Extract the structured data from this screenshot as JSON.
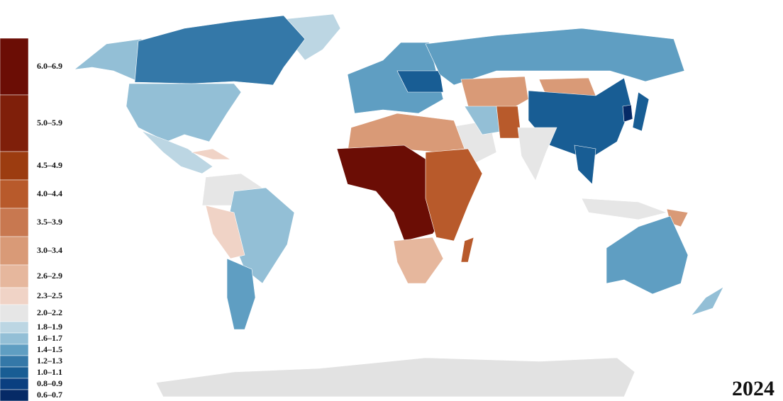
{
  "year": "2024",
  "legend": {
    "items": [
      {
        "label": "6.0–6.9",
        "color": "#6b0d05"
      },
      {
        "label": "5.0–5.9",
        "color": "#7f1f0a"
      },
      {
        "label": "4.5–4.9",
        "color": "#9c3c10"
      },
      {
        "label": "4.0–4.4",
        "color": "#b85a2b"
      },
      {
        "label": "3.5–3.9",
        "color": "#c87850"
      },
      {
        "label": "3.0–3.4",
        "color": "#d99a77"
      },
      {
        "label": "2.6–2.9",
        "color": "#e6b79d"
      },
      {
        "label": "2.3–2.5",
        "color": "#f0d3c6"
      },
      {
        "label": "2.0–2.2",
        "color": "#e6e6e6"
      },
      {
        "label": "1.8–1.9",
        "color": "#bcd6e3"
      },
      {
        "label": "1.6–1.7",
        "color": "#93bfd6"
      },
      {
        "label": "1.4–1.5",
        "color": "#5f9ec2"
      },
      {
        "label": "1.2–1.3",
        "color": "#3478a8"
      },
      {
        "label": "1.0–1.1",
        "color": "#185d94"
      },
      {
        "label": "0.8–0.9",
        "color": "#0a3f80"
      },
      {
        "label": "0.6–0.7",
        "color": "#062a66"
      }
    ]
  }
}
